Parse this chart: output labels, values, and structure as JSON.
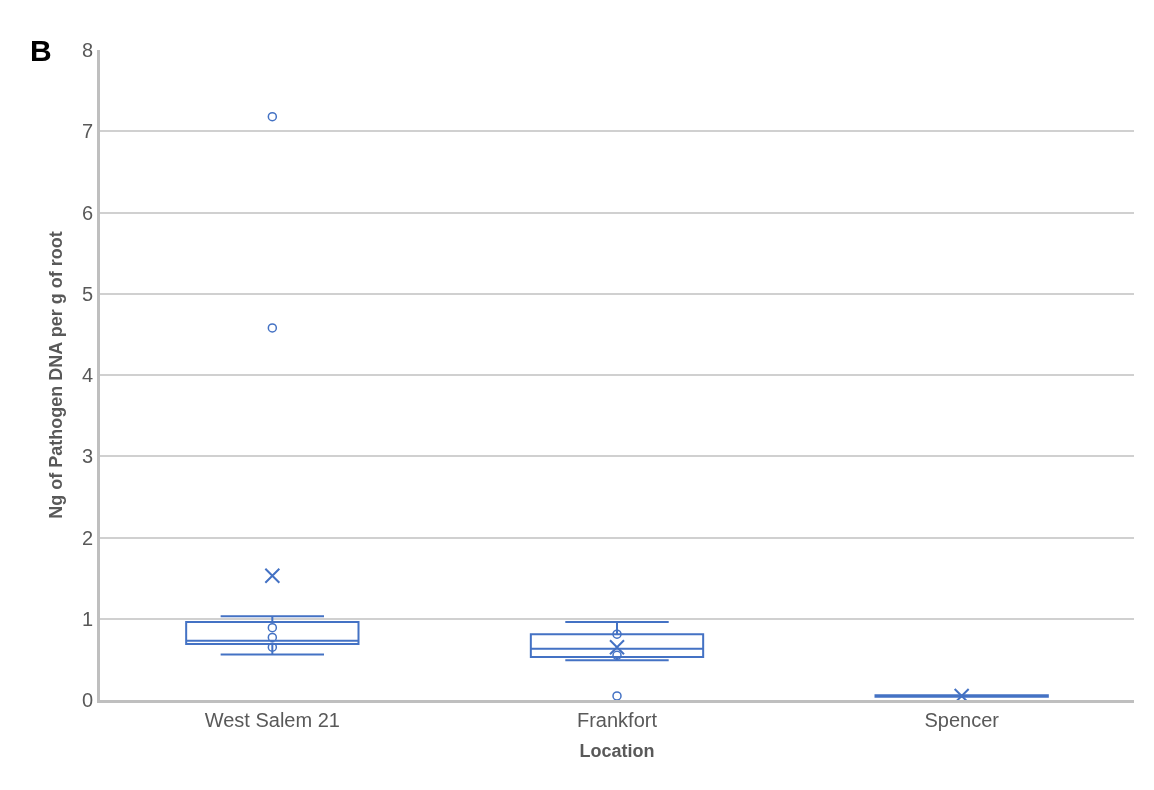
{
  "chart_data": {
    "type": "box",
    "title": "B",
    "xlabel": "Location",
    "ylabel": "Ng of Pathogen DNA per g of root",
    "categories": [
      "West Salem 21",
      "Frankfort",
      "Spencer"
    ],
    "color": "#4472c4",
    "boxes": [
      {
        "low": 0.56,
        "q1": 0.69,
        "median": 0.73,
        "q3": 0.96,
        "high": 1.03,
        "mean": 1.53,
        "outliers": [
          0.65,
          0.77,
          0.89,
          4.58,
          7.18
        ]
      },
      {
        "low": 0.49,
        "q1": 0.53,
        "median": 0.63,
        "q3": 0.81,
        "high": 0.96,
        "mean": 0.65,
        "outliers": [
          0.05,
          0.55,
          0.81
        ]
      },
      {
        "low": 0.04,
        "q1": 0.04,
        "median": 0.05,
        "q3": 0.06,
        "high": 0.06,
        "mean": 0.05
      }
    ],
    "ylim": [
      0,
      8
    ],
    "yticks": [
      0,
      1,
      2,
      3,
      4,
      5,
      6,
      7,
      8
    ],
    "grid": "y"
  }
}
